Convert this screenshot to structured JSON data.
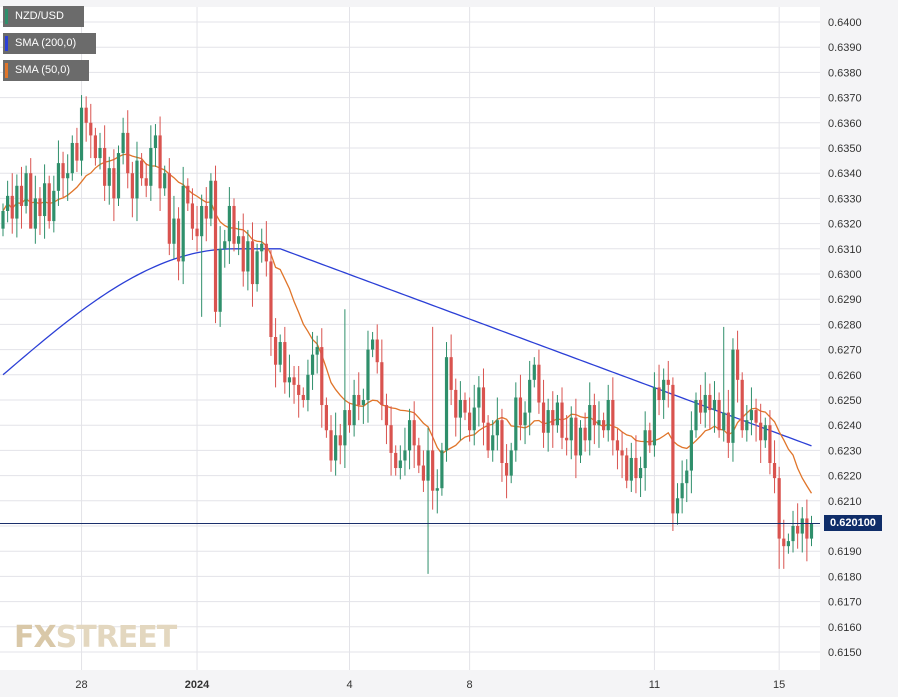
{
  "legend": {
    "instrument": "NZD/USD",
    "sma200": "SMA (200,0)",
    "sma50": "SMA (50,0)"
  },
  "price_tag": "0.620100",
  "watermark": {
    "part1": "FX",
    "part2": "STREET"
  },
  "colors": {
    "up": "#2f8f6b",
    "down": "#d9534f",
    "sma200": "#2b3fd6",
    "sma50": "#e0752a",
    "price_line": "#1a2f6b",
    "price_tag_bg": "#0f2d69",
    "grid": "#e3e3e8",
    "background": "#ffffff"
  },
  "chart_data": {
    "type": "candlestick",
    "instrument": "NZD/USD",
    "y_axis": {
      "min": 0.6145,
      "max": 0.6405,
      "ticks": [
        "0.6150",
        "0.6160",
        "0.6170",
        "0.6180",
        "0.6190",
        "0.6200",
        "0.6210",
        "0.6220",
        "0.6230",
        "0.6240",
        "0.6250",
        "0.6260",
        "0.6270",
        "0.6280",
        "0.6290",
        "0.6300",
        "0.6310",
        "0.6320",
        "0.6330",
        "0.6340",
        "0.6350",
        "0.6360",
        "0.6370",
        "0.6380",
        "0.6390",
        "0.6400"
      ]
    },
    "x_axis": {
      "labels": [
        {
          "label": "28",
          "index": 17
        },
        {
          "label": "2024",
          "index": 42
        },
        {
          "label": "4",
          "index": 75
        },
        {
          "label": "8",
          "index": 101
        },
        {
          "label": "11",
          "index": 141
        },
        {
          "label": "15",
          "index": 168
        }
      ]
    },
    "current_price": 0.6201,
    "close": [
      0.6325,
      0.6331,
      0.6322,
      0.6335,
      0.6327,
      0.634,
      0.6318,
      0.633,
      0.6323,
      0.6336,
      0.6321,
      0.6333,
      0.6344,
      0.6338,
      0.634,
      0.6352,
      0.6345,
      0.6366,
      0.636,
      0.6355,
      0.6346,
      0.635,
      0.6335,
      0.6342,
      0.633,
      0.6348,
      0.6356,
      0.634,
      0.633,
      0.6345,
      0.6338,
      0.6335,
      0.635,
      0.6355,
      0.6334,
      0.634,
      0.6312,
      0.6322,
      0.6305,
      0.6335,
      0.6328,
      0.6318,
      0.6315,
      0.6327,
      0.6322,
      0.6337,
      0.6285,
      0.631,
      0.6313,
      0.6327,
      0.6312,
      0.6315,
      0.6301,
      0.6313,
      0.6296,
      0.6309,
      0.6312,
      0.6305,
      0.6275,
      0.6264,
      0.6273,
      0.6257,
      0.6259,
      0.6256,
      0.6252,
      0.625,
      0.626,
      0.6268,
      0.6271,
      0.6248,
      0.6238,
      0.6226,
      0.6236,
      0.6232,
      0.6246,
      0.624,
      0.6252,
      0.6248,
      0.625,
      0.627,
      0.6274,
      0.6265,
      0.6248,
      0.624,
      0.6229,
      0.6223,
      0.6226,
      0.623,
      0.6242,
      0.6232,
      0.6224,
      0.6218,
      0.623,
      0.6214,
      0.6215,
      0.623,
      0.6267,
      0.6254,
      0.6243,
      0.625,
      0.6245,
      0.6238,
      0.6247,
      0.6255,
      0.6241,
      0.623,
      0.6236,
      0.6242,
      0.6225,
      0.622,
      0.623,
      0.6251,
      0.624,
      0.6245,
      0.6258,
      0.6264,
      0.6249,
      0.6237,
      0.6246,
      0.624,
      0.6249,
      0.6235,
      0.6234,
      0.6243,
      0.6228,
      0.6239,
      0.6234,
      0.6248,
      0.624,
      0.6242,
      0.6238,
      0.625,
      0.6234,
      0.623,
      0.6228,
      0.6218,
      0.6227,
      0.6219,
      0.6223,
      0.6238,
      0.6232,
      0.6255,
      0.625,
      0.6258,
      0.6256,
      0.6205,
      0.6211,
      0.6217,
      0.6222,
      0.6238,
      0.625,
      0.6245,
      0.6252,
      0.6246,
      0.625,
      0.6238,
      0.6245,
      0.6233,
      0.627,
      0.6258,
      0.6238,
      0.6242,
      0.6246,
      0.6241,
      0.6234,
      0.624,
      0.6225,
      0.6219,
      0.6195,
      0.6192,
      0.6194,
      0.62,
      0.6197,
      0.6203,
      0.6195,
      0.6201
    ]
  }
}
